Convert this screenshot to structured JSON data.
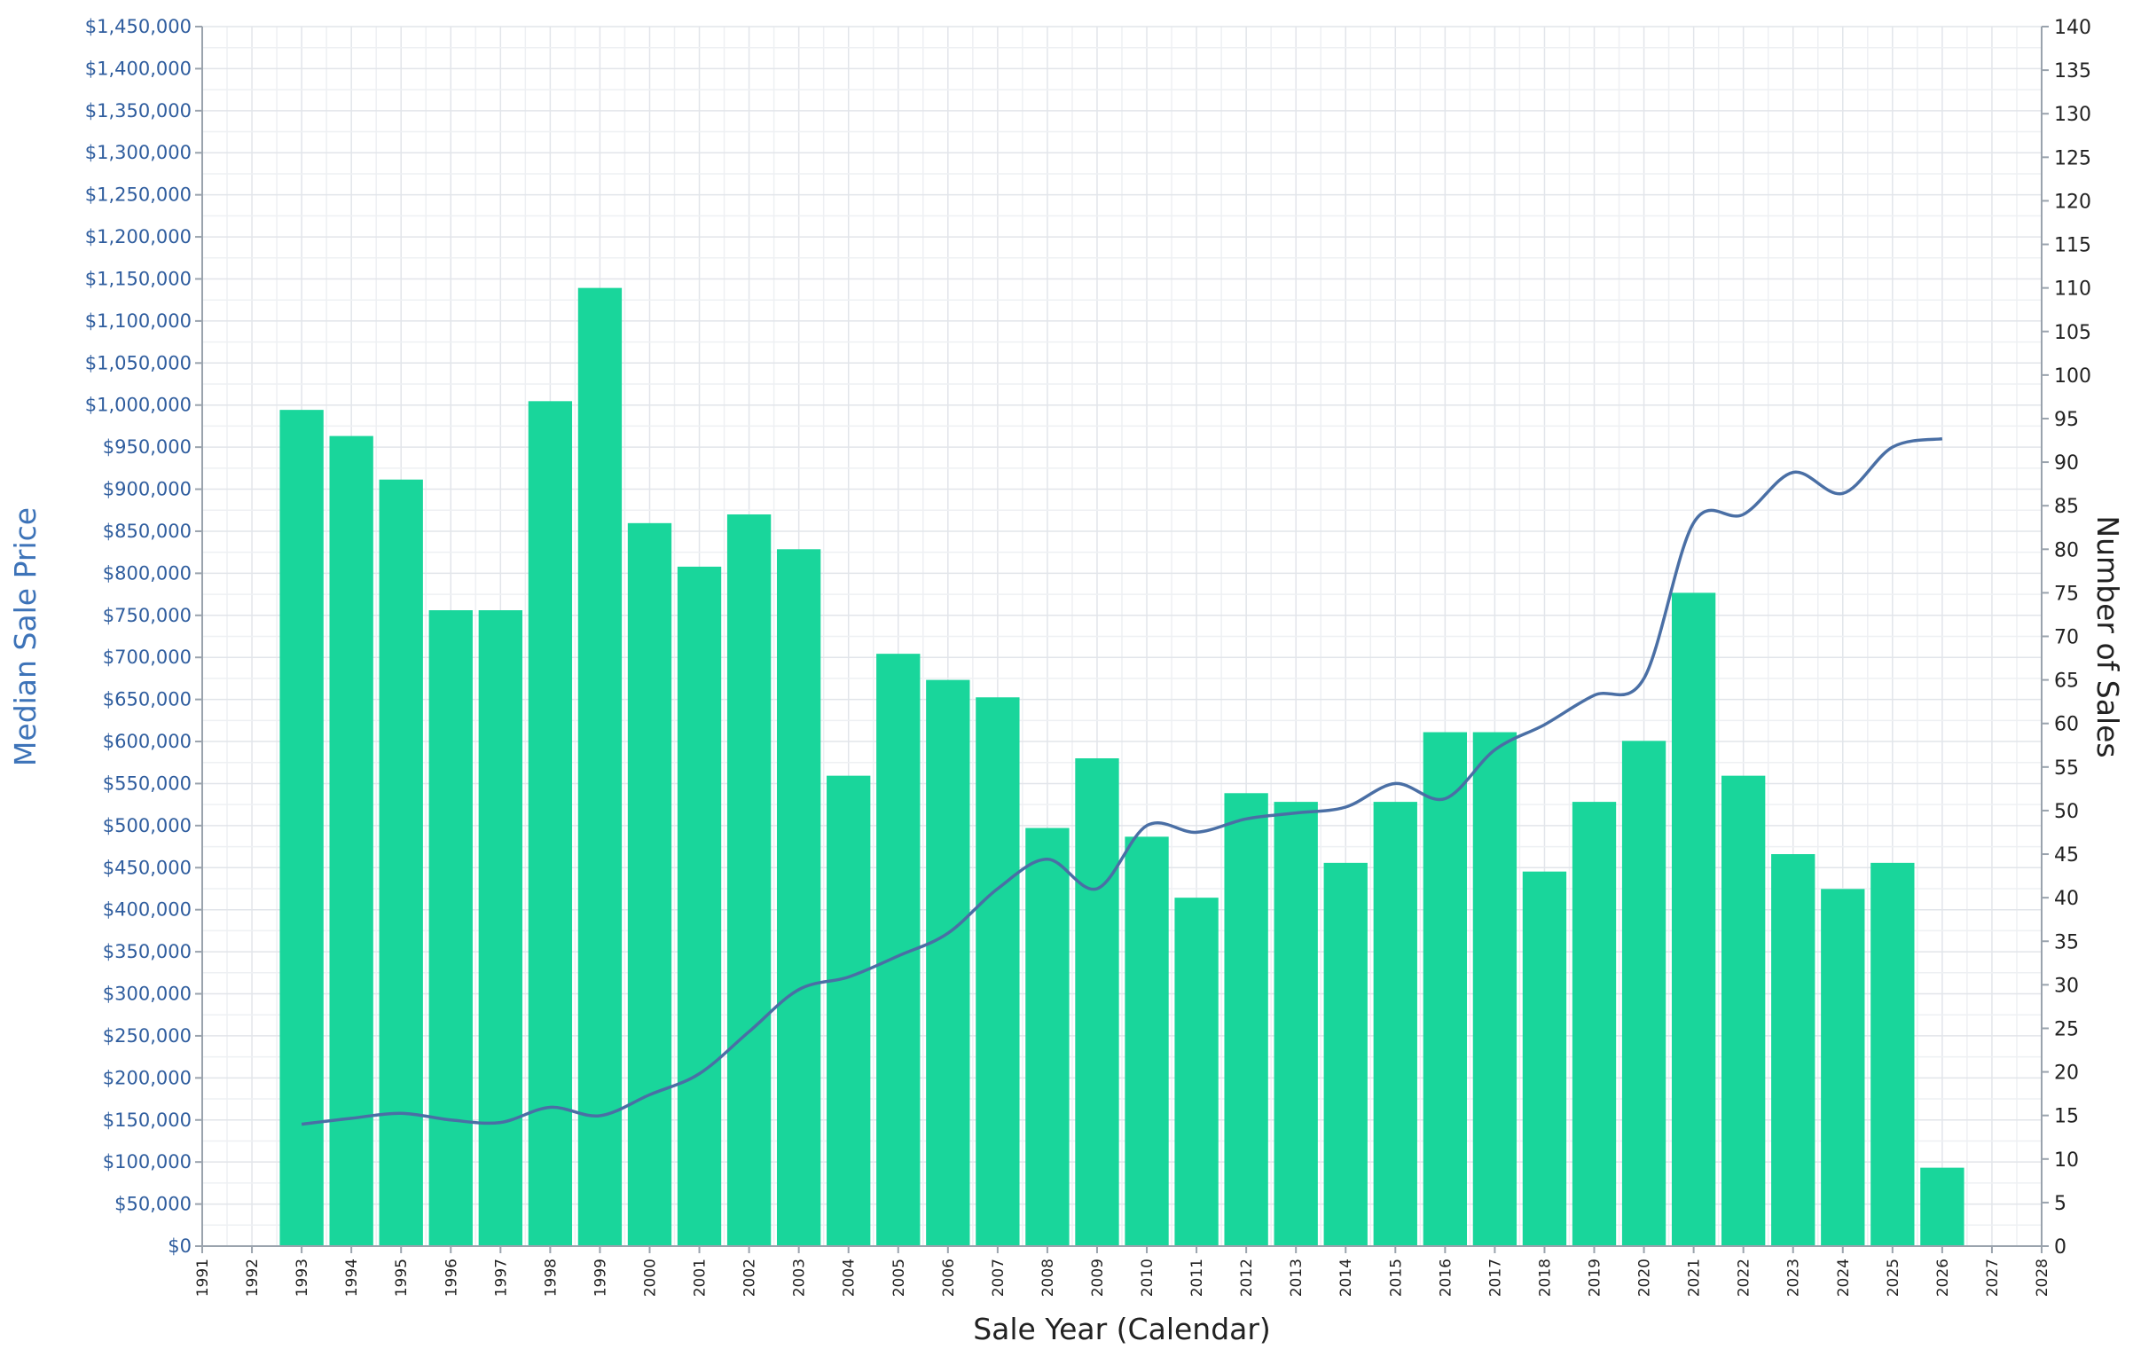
{
  "chart_data": {
    "type": "bar",
    "x_label": "Sale Year (Calendar)",
    "y_left_label": "Median Sale Price",
    "y_right_label": "Number of Sales",
    "x_range": [
      1991,
      2028
    ],
    "y_left_range": [
      0,
      1450000
    ],
    "y_right_range": [
      0,
      140
    ],
    "grid": true,
    "bar_color": "#19d69b",
    "line_color": "#4a6fa5",
    "x_tick_labels": [
      "1991",
      "1992",
      "1993",
      "1994",
      "1995",
      "1996",
      "1997",
      "1998",
      "1999",
      "2000",
      "2001",
      "2002",
      "2003",
      "2004",
      "2005",
      "2006",
      "2007",
      "2008",
      "2009",
      "2010",
      "2011",
      "2012",
      "2013",
      "2014",
      "2015",
      "2016",
      "2017",
      "2018",
      "2019",
      "2020",
      "2021",
      "2022",
      "2023",
      "2024",
      "2025",
      "2026",
      "2027",
      "2028"
    ],
    "y_left_tick_labels": [
      "$0",
      "$50,000",
      "$100,000",
      "$150,000",
      "$200,000",
      "$250,000",
      "$300,000",
      "$350,000",
      "$400,000",
      "$450,000",
      "$500,000",
      "$550,000",
      "$600,000",
      "$650,000",
      "$700,000",
      "$750,000",
      "$800,000",
      "$850,000",
      "$900,000",
      "$950,000",
      "$1,000,000",
      "$1,050,000",
      "$1,100,000",
      "$1,150,000",
      "$1,200,000",
      "$1,250,000",
      "$1,300,000",
      "$1,350,000",
      "$1,400,000",
      "$1,450,000"
    ],
    "y_right_tick_labels": [
      "0",
      "5",
      "10",
      "15",
      "20",
      "25",
      "30",
      "35",
      "40",
      "45",
      "50",
      "55",
      "60",
      "65",
      "70",
      "75",
      "80",
      "85",
      "90",
      "95",
      "100",
      "105",
      "110",
      "115",
      "120",
      "125",
      "130",
      "135",
      "140"
    ],
    "series": [
      {
        "type": "bar",
        "axis": "right",
        "x": [
          1993,
          1994,
          1995,
          1996,
          1997,
          1998,
          1999,
          2000,
          2001,
          2002,
          2003,
          2004,
          2005,
          2006,
          2007,
          2008,
          2009,
          2010,
          2011,
          2012,
          2013,
          2014,
          2015,
          2016,
          2017,
          2018,
          2019,
          2020,
          2021,
          2022,
          2023,
          2024,
          2025,
          2026
        ],
        "values": [
          96,
          93,
          88,
          73,
          73,
          97,
          110,
          83,
          78,
          84,
          80,
          54,
          68,
          65,
          63,
          48,
          56,
          47,
          40,
          52,
          51,
          44,
          51,
          59,
          59,
          43,
          51,
          58,
          75,
          54,
          45,
          41,
          44,
          9
        ]
      },
      {
        "type": "line",
        "axis": "left",
        "x": [
          1993,
          1994,
          1995,
          1996,
          1997,
          1998,
          1999,
          2000,
          2001,
          2002,
          2003,
          2004,
          2005,
          2006,
          2007,
          2008,
          2009,
          2010,
          2011,
          2012,
          2013,
          2014,
          2015,
          2016,
          2017,
          2018,
          2019,
          2020,
          2021,
          2022,
          2023,
          2024,
          2025,
          2026
        ],
        "values": [
          145000,
          152000,
          158000,
          150000,
          147000,
          165000,
          155000,
          180000,
          205000,
          255000,
          305000,
          320000,
          345000,
          372000,
          425000,
          460000,
          425000,
          500000,
          492000,
          508000,
          515000,
          522000,
          550000,
          532000,
          590000,
          620000,
          655000,
          675000,
          860000,
          870000,
          920000,
          895000,
          950000,
          960000
        ]
      }
    ]
  }
}
